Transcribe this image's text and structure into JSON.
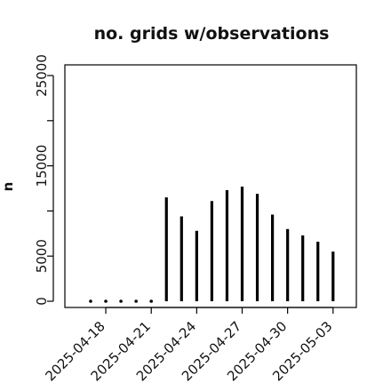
{
  "chart_data": {
    "type": "bar",
    "title": "no. grids w/observations",
    "xlabel": "",
    "ylabel": "n",
    "x": [
      "2025-04-17",
      "2025-04-18",
      "2025-04-19",
      "2025-04-20",
      "2025-04-21",
      "2025-04-22",
      "2025-04-23",
      "2025-04-24",
      "2025-04-25",
      "2025-04-26",
      "2025-04-27",
      "2025-04-28",
      "2025-04-29",
      "2025-04-30",
      "2025-05-01",
      "2025-05-02",
      "2025-05-03"
    ],
    "values": [
      0,
      0,
      0,
      0,
      0,
      11500,
      9400,
      7800,
      11100,
      12300,
      12700,
      11900,
      9600,
      8000,
      7300,
      6600,
      5500
    ],
    "ylim": [
      0,
      26000
    ],
    "yticks": [
      0,
      5000,
      15000,
      25000
    ],
    "xtick_labels": [
      "2025-04-18",
      "2025-04-21",
      "2025-04-24",
      "2025-04-27",
      "2025-04-30",
      "2025-05-03"
    ],
    "highlight_tick": "2025-04-24",
    "colors": {
      "bars": "#000000",
      "highlight": "#228B22"
    },
    "grid": false
  }
}
